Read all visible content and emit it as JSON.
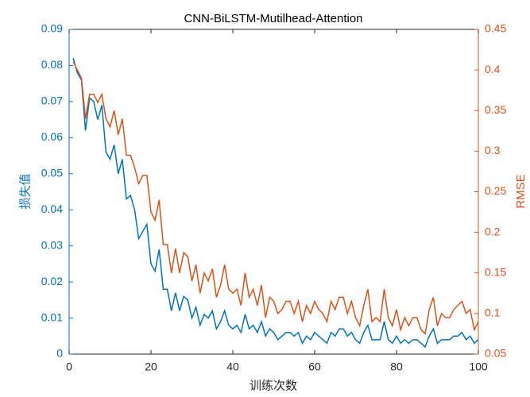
{
  "chart_data": {
    "type": "line",
    "title": "CNN-BiLSTM-Mutilhead-Attention",
    "xlabel": "训练次数",
    "ylabel": "损失值",
    "y2label": "RMSE",
    "x": [
      1,
      2,
      3,
      4,
      5,
      6,
      7,
      8,
      9,
      10,
      11,
      12,
      13,
      14,
      15,
      16,
      17,
      18,
      19,
      20,
      21,
      22,
      23,
      24,
      25,
      26,
      27,
      28,
      29,
      30,
      31,
      32,
      33,
      34,
      35,
      36,
      37,
      38,
      39,
      40,
      41,
      42,
      43,
      44,
      45,
      46,
      47,
      48,
      49,
      50,
      51,
      52,
      53,
      54,
      55,
      56,
      57,
      58,
      59,
      60,
      61,
      62,
      63,
      64,
      65,
      66,
      67,
      68,
      69,
      70,
      71,
      72,
      73,
      74,
      75,
      76,
      77,
      78,
      79,
      80,
      81,
      82,
      83,
      84,
      85,
      86,
      87,
      88,
      89,
      90,
      91,
      92,
      93,
      94,
      95,
      96,
      97,
      98,
      99,
      100
    ],
    "series": [
      {
        "name": "损失值",
        "color": "#0072BD",
        "axis": "y",
        "values": [
          0.082,
          0.078,
          0.076,
          0.062,
          0.071,
          0.07,
          0.065,
          0.069,
          0.056,
          0.054,
          0.058,
          0.05,
          0.054,
          0.043,
          0.044,
          0.04,
          0.032,
          0.034,
          0.036,
          0.025,
          0.023,
          0.029,
          0.018,
          0.018,
          0.012,
          0.017,
          0.012,
          0.016,
          0.015,
          0.01,
          0.013,
          0.008,
          0.011,
          0.01,
          0.012,
          0.007,
          0.009,
          0.012,
          0.008,
          0.007,
          0.008,
          0.006,
          0.011,
          0.007,
          0.008,
          0.006,
          0.009,
          0.005,
          0.007,
          0.006,
          0.004,
          0.005,
          0.006,
          0.006,
          0.005,
          0.006,
          0.003,
          0.005,
          0.004,
          0.006,
          0.005,
          0.004,
          0.003,
          0.006,
          0.005,
          0.007,
          0.007,
          0.005,
          0.006,
          0.004,
          0.003,
          0.006,
          0.008,
          0.004,
          0.004,
          0.004,
          0.009,
          0.004,
          0.003,
          0.005,
          0.003,
          0.004,
          0.003,
          0.004,
          0.004,
          0.003,
          0.002,
          0.005,
          0.007,
          0.003,
          0.004,
          0.004,
          0.004,
          0.005,
          0.005,
          0.006,
          0.004,
          0.005,
          0.003,
          0.004
        ]
      },
      {
        "name": "RMSE",
        "color": "#D95319",
        "axis": "y2",
        "values": [
          0.41,
          0.4,
          0.39,
          0.34,
          0.37,
          0.37,
          0.36,
          0.37,
          0.34,
          0.33,
          0.35,
          0.32,
          0.34,
          0.295,
          0.295,
          0.28,
          0.26,
          0.27,
          0.27,
          0.225,
          0.215,
          0.24,
          0.185,
          0.185,
          0.15,
          0.18,
          0.15,
          0.175,
          0.17,
          0.14,
          0.16,
          0.125,
          0.15,
          0.14,
          0.155,
          0.12,
          0.135,
          0.16,
          0.13,
          0.125,
          0.13,
          0.11,
          0.15,
          0.12,
          0.13,
          0.11,
          0.135,
          0.095,
          0.12,
          0.115,
          0.1,
          0.105,
          0.115,
          0.115,
          0.1,
          0.115,
          0.09,
          0.11,
          0.1,
          0.115,
          0.105,
          0.1,
          0.09,
          0.115,
          0.105,
          0.12,
          0.12,
          0.1,
          0.115,
          0.095,
          0.085,
          0.11,
          0.13,
          0.09,
          0.095,
          0.09,
          0.13,
          0.095,
          0.085,
          0.105,
          0.08,
          0.095,
          0.085,
          0.095,
          0.095,
          0.08,
          0.075,
          0.105,
          0.12,
          0.085,
          0.1,
          0.095,
          0.095,
          0.105,
          0.11,
          0.115,
          0.1,
          0.105,
          0.08,
          0.09
        ]
      }
    ],
    "xlim": [
      0,
      100
    ],
    "xticks": [
      0,
      20,
      40,
      60,
      80,
      100
    ],
    "ylim": [
      0,
      0.09
    ],
    "yticks": [
      0,
      0.01,
      0.02,
      0.03,
      0.04,
      0.05,
      0.06,
      0.07,
      0.08,
      0.09
    ],
    "y2lim": [
      0.05,
      0.45
    ],
    "y2ticks": [
      0.05,
      0.1,
      0.15,
      0.2,
      0.25,
      0.3,
      0.35,
      0.4,
      0.45
    ]
  }
}
